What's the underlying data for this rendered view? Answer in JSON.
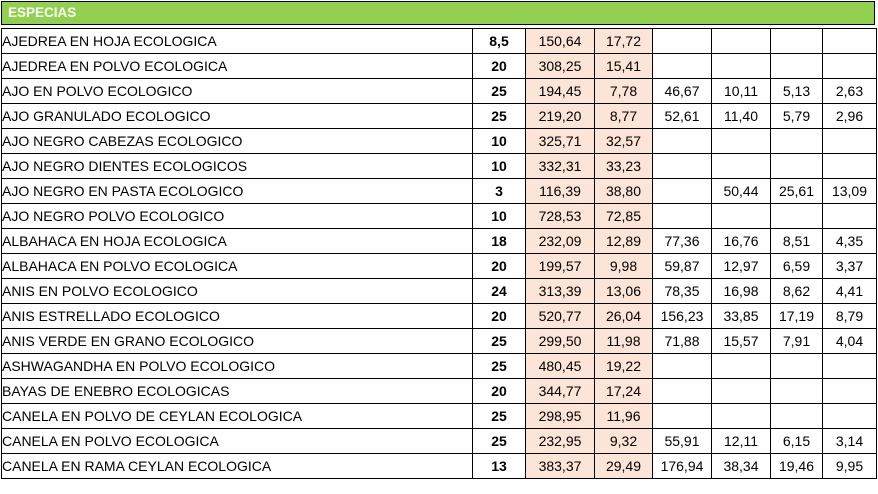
{
  "section": {
    "title": "ESPECIAS"
  },
  "rows": [
    {
      "name": "AJEDREA EN HOJA ECOLOGICA",
      "qty": "8,5",
      "price": "150,64",
      "unit": "17,72",
      "c1": "",
      "c2": "",
      "c3": "",
      "c4": ""
    },
    {
      "name": "AJEDREA EN POLVO ECOLOGICA",
      "qty": "20",
      "price": "308,25",
      "unit": "15,41",
      "c1": "",
      "c2": "",
      "c3": "",
      "c4": ""
    },
    {
      "name": "AJO EN POLVO ECOLOGICO",
      "qty": "25",
      "price": "194,45",
      "unit": "7,78",
      "c1": "46,67",
      "c2": "10,11",
      "c3": "5,13",
      "c4": "2,63"
    },
    {
      "name": "AJO GRANULADO ECOLOGICO",
      "qty": "25",
      "price": "219,20",
      "unit": "8,77",
      "c1": "52,61",
      "c2": "11,40",
      "c3": "5,79",
      "c4": "2,96"
    },
    {
      "name": "AJO NEGRO CABEZAS ECOLOGICO",
      "qty": "10",
      "price": "325,71",
      "unit": "32,57",
      "c1": "",
      "c2": "",
      "c3": "",
      "c4": ""
    },
    {
      "name": "AJO NEGRO DIENTES ECOLOGICOS",
      "qty": "10",
      "price": "332,31",
      "unit": "33,23",
      "c1": "",
      "c2": "",
      "c3": "",
      "c4": ""
    },
    {
      "name": "AJO NEGRO EN PASTA ECOLOGICO",
      "qty": "3",
      "price": "116,39",
      "unit": "38,80",
      "c1": "",
      "c2": "50,44",
      "c3": "25,61",
      "c4": "13,09"
    },
    {
      "name": "AJO NEGRO POLVO ECOLOGICO",
      "qty": "10",
      "price": "728,53",
      "unit": "72,85",
      "c1": "",
      "c2": "",
      "c3": "",
      "c4": ""
    },
    {
      "name": "ALBAHACA EN HOJA ECOLOGICA",
      "qty": "18",
      "price": "232,09",
      "unit": "12,89",
      "c1": "77,36",
      "c2": "16,76",
      "c3": "8,51",
      "c4": "4,35"
    },
    {
      "name": "ALBAHACA EN POLVO ECOLOGICA",
      "qty": "20",
      "price": "199,57",
      "unit": "9,98",
      "c1": "59,87",
      "c2": "12,97",
      "c3": "6,59",
      "c4": "3,37"
    },
    {
      "name": "ANIS EN POLVO ECOLOGICO",
      "qty": "24",
      "price": "313,39",
      "unit": "13,06",
      "c1": "78,35",
      "c2": "16,98",
      "c3": "8,62",
      "c4": "4,41"
    },
    {
      "name": "ANIS ESTRELLADO ECOLOGICO",
      "qty": "20",
      "price": "520,77",
      "unit": "26,04",
      "c1": "156,23",
      "c2": "33,85",
      "c3": "17,19",
      "c4": "8,79"
    },
    {
      "name": "ANIS VERDE EN GRANO ECOLOGICO",
      "qty": "25",
      "price": "299,50",
      "unit": "11,98",
      "c1": "71,88",
      "c2": "15,57",
      "c3": "7,91",
      "c4": "4,04"
    },
    {
      "name": "ASHWAGANDHA EN POLVO ECOLOGICO",
      "qty": "25",
      "price": "480,45",
      "unit": "19,22",
      "c1": "",
      "c2": "",
      "c3": "",
      "c4": ""
    },
    {
      "name": "BAYAS DE ENEBRO ECOLOGICAS",
      "qty": "20",
      "price": "344,77",
      "unit": "17,24",
      "c1": "",
      "c2": "",
      "c3": "",
      "c4": ""
    },
    {
      "name": "CANELA EN POLVO DE CEYLAN ECOLOGICA",
      "qty": "25",
      "price": "298,95",
      "unit": "11,96",
      "c1": "",
      "c2": "",
      "c3": "",
      "c4": ""
    },
    {
      "name": "CANELA EN POLVO ECOLOGICA",
      "qty": "25",
      "price": "232,95",
      "unit": "9,32",
      "c1": "55,91",
      "c2": "12,11",
      "c3": "6,15",
      "c4": "3,14"
    },
    {
      "name": "CANELA EN RAMA CEYLAN ECOLOGICA",
      "qty": "13",
      "price": "383,37",
      "unit": "29,49",
      "c1": "176,94",
      "c2": "38,34",
      "c3": "19,46",
      "c4": "9,95"
    }
  ]
}
